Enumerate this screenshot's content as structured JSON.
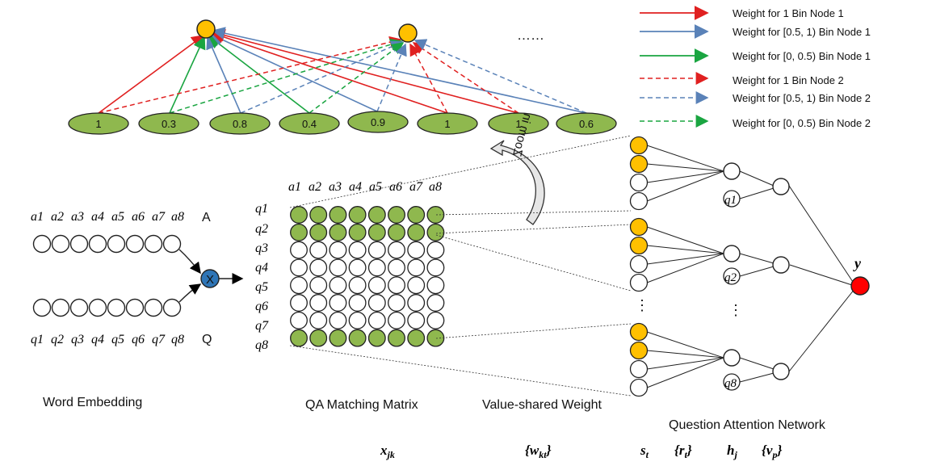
{
  "bin_nodes": {
    "node1": "",
    "node2": "",
    "ellipsis": "……"
  },
  "input_values": [
    "1",
    "0.3",
    "0.8",
    "0.4",
    "0.9",
    "1",
    "1",
    "0.6"
  ],
  "legend": [
    {
      "label": "Weight for 1 Bin Node 1",
      "color": "#e02020",
      "dash": false
    },
    {
      "label": "Weight for [0.5, 1) Bin Node 1",
      "color": "#5a82b8",
      "dash": false
    },
    {
      "label": "Weight for [0, 0.5)  Bin Node 1",
      "color": "#1aa541",
      "dash": false
    },
    {
      "label": "Weight for 1  Bin Node 2",
      "color": "#e02020",
      "dash": true
    },
    {
      "label": "Weight for [0.5, 1) Bin Node 2",
      "color": "#5a82b8",
      "dash": true
    },
    {
      "label": "Weight for [0, 0.5) Bin Node 2",
      "color": "#1aa541",
      "dash": true
    }
  ],
  "zoom_label": "Zoom in",
  "answer_words": [
    "a1",
    "a2",
    "a3",
    "a4",
    "a5",
    "a6",
    "a7",
    "a8"
  ],
  "question_words": [
    "q1",
    "q2",
    "q3",
    "q4",
    "q5",
    "q6",
    "q7",
    "q8"
  ],
  "label_A": "A",
  "label_Q": "Q",
  "multiply_symbol": "X",
  "qa_nodes": [
    "q1",
    "q2",
    "q8"
  ],
  "vertical_ellipsis": "⋮",
  "output_label": "y",
  "sections": {
    "word_embedding": "Word Embedding",
    "qa_matrix": "QA Matching Matrix",
    "value_shared": "Value-shared Weight",
    "qa_network": "Question Attention Network"
  },
  "math_labels": {
    "x": "x",
    "x_sub": "jk",
    "w": "{w",
    "w_sub": "kt",
    "w_close": "}",
    "s": "s",
    "s_sub": "t",
    "r": "{r",
    "r_sub": "t",
    "r_close": "}",
    "h": "h",
    "h_sub": "j",
    "v": "{v",
    "v_sub": "p",
    "v_close": "}"
  },
  "colors": {
    "green_fill": "#8fb84e",
    "orange_fill": "#ffc000",
    "red_fill": "#ff0000",
    "blue_fill": "#2e75b6"
  }
}
